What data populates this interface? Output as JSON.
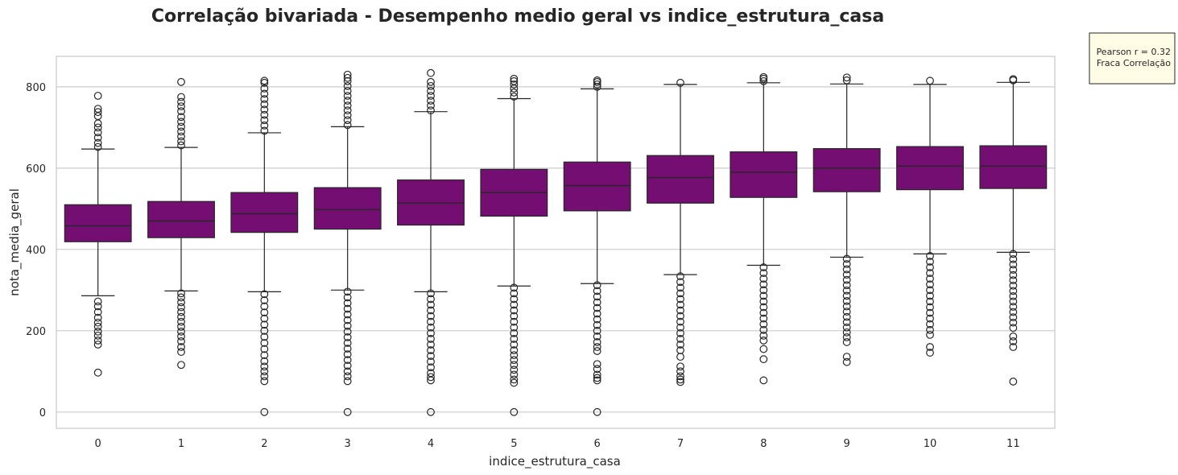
{
  "chart_data": {
    "type": "box",
    "title": "Correlação bivariada - Desempenho medio geral vs indice_estrutura_casa",
    "xlabel": "indice_estrutura_casa",
    "ylabel": "nota_media_geral",
    "ylim": [
      -40,
      875
    ],
    "yticks": [
      0,
      200,
      400,
      600,
      800
    ],
    "grid": true,
    "box_color": "#750e72",
    "line_color": "#262626",
    "annotation": {
      "lines": [
        "Pearson r = 0.32",
        "Fraca Correlação"
      ],
      "background": "#fffde6",
      "placement": "outside-top-right"
    },
    "categories": [
      "0",
      "1",
      "2",
      "3",
      "4",
      "5",
      "6",
      "7",
      "8",
      "9",
      "10",
      "11"
    ],
    "boxes": [
      {
        "category": "0",
        "whislo": 286,
        "q1": 419,
        "median": 458,
        "q3": 510,
        "whishi": 647,
        "fliers_high": [
          652,
          662,
          675,
          688,
          700,
          710,
          728,
          738,
          746,
          778
        ],
        "fliers_low": [
          272,
          260,
          246,
          232,
          220,
          210,
          198,
          188,
          176,
          166,
          97
        ]
      },
      {
        "category": "1",
        "whislo": 298,
        "q1": 429,
        "median": 470,
        "q3": 518,
        "whishi": 651,
        "fliers_high": [
          656,
          666,
          678,
          690,
          702,
          714,
          726,
          740,
          752,
          763,
          775,
          812
        ],
        "fliers_low": [
          292,
          282,
          270,
          258,
          246,
          234,
          222,
          210,
          198,
          186,
          174,
          160,
          148,
          116
        ]
      },
      {
        "category": "2",
        "whislo": 296,
        "q1": 442,
        "median": 488,
        "q3": 540,
        "whishi": 687,
        "fliers_high": [
          692,
          705,
          718,
          731,
          744,
          757,
          770,
          783,
          796,
          810,
          815
        ],
        "fliers_low": [
          290,
          275,
          260,
          245,
          230,
          215,
          200,
          185,
          170,
          155,
          140,
          125,
          112,
          100,
          88,
          76,
          0
        ]
      },
      {
        "category": "3",
        "whislo": 300,
        "q1": 450,
        "median": 498,
        "q3": 552,
        "whishi": 702,
        "fliers_high": [
          706,
          718,
          730,
          742,
          754,
          766,
          778,
          790,
          802,
          814,
          822,
          830
        ],
        "fliers_low": [
          296,
          282,
          268,
          254,
          240,
          226,
          212,
          198,
          184,
          170,
          156,
          142,
          128,
          114,
          100,
          88,
          76,
          0
        ]
      },
      {
        "category": "4",
        "whislo": 296,
        "q1": 460,
        "median": 514,
        "q3": 571,
        "whishi": 739,
        "fliers_high": [
          742,
          754,
          766,
          778,
          790,
          802,
          812,
          834
        ],
        "fliers_low": [
          292,
          278,
          264,
          250,
          236,
          222,
          208,
          194,
          180,
          166,
          152,
          138,
          124,
          110,
          96,
          86,
          78,
          0
        ]
      },
      {
        "category": "5",
        "whislo": 310,
        "q1": 482,
        "median": 540,
        "q3": 597,
        "whishi": 771,
        "fliers_high": [
          776,
          786,
          796,
          806,
          814,
          820
        ],
        "fliers_low": [
          306,
          292,
          278,
          264,
          250,
          236,
          222,
          208,
          194,
          180,
          166,
          152,
          140,
          128,
          116,
          104,
          92,
          80,
          72,
          0
        ]
      },
      {
        "category": "6",
        "whislo": 316,
        "q1": 495,
        "median": 557,
        "q3": 615,
        "whishi": 795,
        "fliers_high": [
          800,
          806,
          812,
          816
        ],
        "fliers_low": [
          312,
          298,
          284,
          270,
          256,
          242,
          228,
          214,
          200,
          186,
          172,
          160,
          150,
          118,
          106,
          92,
          84,
          78,
          0
        ]
      },
      {
        "category": "7",
        "whislo": 338,
        "q1": 514,
        "median": 577,
        "q3": 631,
        "whishi": 806,
        "fliers_high": [
          810
        ],
        "fliers_low": [
          334,
          320,
          306,
          292,
          278,
          264,
          250,
          236,
          222,
          208,
          194,
          180,
          166,
          152,
          136,
          112,
          100,
          88,
          80,
          74
        ]
      },
      {
        "category": "8",
        "whislo": 361,
        "q1": 528,
        "median": 590,
        "q3": 640,
        "whishi": 810,
        "fliers_high": [
          814,
          820,
          824
        ],
        "fliers_low": [
          356,
          342,
          328,
          314,
          300,
          286,
          272,
          258,
          244,
          230,
          216,
          202,
          188,
          176,
          155,
          130,
          78
        ]
      },
      {
        "category": "9",
        "whislo": 381,
        "q1": 542,
        "median": 600,
        "q3": 648,
        "whishi": 807,
        "fliers_high": [
          816,
          823
        ],
        "fliers_low": [
          377,
          364,
          351,
          338,
          325,
          312,
          299,
          286,
          273,
          260,
          247,
          234,
          221,
          208,
          196,
          184,
          172,
          136,
          123
        ]
      },
      {
        "category": "10",
        "whislo": 389,
        "q1": 547,
        "median": 605,
        "q3": 653,
        "whishi": 806,
        "fliers_high": [
          815
        ],
        "fliers_low": [
          384,
          370,
          356,
          342,
          328,
          314,
          300,
          286,
          272,
          258,
          244,
          230,
          216,
          202,
          190,
          160,
          146
        ]
      },
      {
        "category": "11",
        "whislo": 393,
        "q1": 550,
        "median": 605,
        "q3": 655,
        "whishi": 811,
        "fliers_high": [
          816,
          819
        ],
        "fliers_low": [
          389,
          376,
          363,
          350,
          337,
          324,
          311,
          298,
          285,
          272,
          259,
          246,
          233,
          220,
          207,
          186,
          174,
          160,
          75
        ]
      }
    ]
  }
}
